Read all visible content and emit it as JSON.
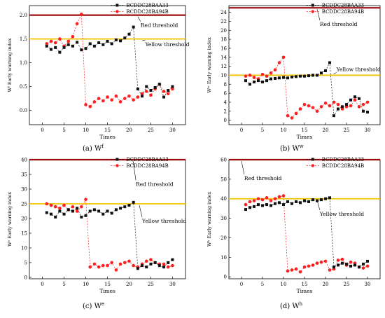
{
  "chart_data": [
    {
      "type": "line",
      "panel": "(a)",
      "caption_label": "(a)  W",
      "caption_sup": "f",
      "xlabel": "Times",
      "ylabel": "Wᶠ Early warning index",
      "xlim": [
        -3,
        33
      ],
      "ylim": [
        -0.3,
        2.2
      ],
      "xticks": [
        0,
        5,
        10,
        15,
        20,
        25,
        30
      ],
      "yticks": [
        0.0,
        0.5,
        1.0,
        1.5,
        2.0
      ],
      "ytick_labels": [
        "0.0",
        "0.5",
        "1.0",
        "1.5",
        "2.0"
      ],
      "thresholds": [
        {
          "label": "Red threshold",
          "value": 2.0,
          "color": "#9b0d10"
        },
        {
          "label": "Yellow threshold",
          "value": 1.5,
          "color": "#f2c300"
        }
      ],
      "series": [
        {
          "name": "BCDDC28BAA33",
          "marker": "square",
          "color": "#111111",
          "x": [
            1,
            2,
            3,
            4,
            5,
            6,
            7,
            8,
            9,
            10,
            11,
            12,
            13,
            14,
            15,
            16,
            17,
            18,
            19,
            20,
            21,
            22,
            23,
            24,
            25,
            26,
            27,
            28,
            29,
            30
          ],
          "y": [
            1.35,
            1.28,
            1.32,
            1.22,
            1.32,
            1.38,
            1.35,
            1.43,
            1.27,
            1.3,
            1.4,
            1.35,
            1.42,
            1.38,
            1.45,
            1.4,
            1.48,
            1.46,
            1.52,
            1.6,
            1.75,
            0.45,
            0.3,
            0.5,
            0.42,
            0.48,
            0.55,
            0.28,
            0.42,
            0.5
          ]
        },
        {
          "name": "BCDDC28BA94B",
          "marker": "circle",
          "color": "#ff1f1f",
          "x": [
            1,
            2,
            3,
            4,
            5,
            6,
            7,
            8,
            9,
            10,
            11,
            12,
            13,
            14,
            15,
            16,
            17,
            18,
            19,
            20,
            21,
            22,
            23,
            24,
            25,
            26,
            27,
            28,
            29,
            30
          ],
          "y": [
            1.4,
            1.45,
            1.42,
            1.5,
            1.35,
            1.45,
            1.55,
            1.82,
            2.02,
            0.12,
            0.08,
            0.18,
            0.25,
            0.2,
            0.28,
            0.22,
            0.3,
            0.18,
            0.25,
            0.3,
            0.22,
            0.28,
            0.35,
            0.4,
            0.32,
            0.45,
            0.55,
            0.4,
            0.35,
            0.45
          ]
        }
      ]
    },
    {
      "type": "line",
      "panel": "(b)",
      "caption_label": "(b)  W",
      "caption_sup": "w",
      "xlabel": "Times",
      "ylabel": "Wʷ Early warning index",
      "xlim": [
        -3,
        33
      ],
      "ylim": [
        -1,
        25.5
      ],
      "xticks": [
        0,
        5,
        10,
        15,
        20,
        25,
        30
      ],
      "yticks": [
        0,
        2,
        4,
        6,
        8,
        10,
        12,
        14,
        16,
        18,
        20,
        22,
        24
      ],
      "ytick_labels": [
        "0",
        "2",
        "4",
        "6",
        "8",
        "10",
        "12",
        "14",
        "16",
        "18",
        "20",
        "22",
        "24"
      ],
      "thresholds": [
        {
          "label": "Red threshold",
          "value": 25,
          "color": "#9b0d10"
        },
        {
          "label": "Yellow threshold",
          "value": 10,
          "color": "#f2c300"
        }
      ],
      "series": [
        {
          "name": "BCDDC28BAA33",
          "marker": "square",
          "color": "#111111",
          "x": [
            1,
            2,
            3,
            4,
            5,
            6,
            7,
            8,
            9,
            10,
            11,
            12,
            13,
            14,
            15,
            16,
            17,
            18,
            19,
            20,
            21,
            22,
            23,
            24,
            25,
            26,
            27,
            28,
            29,
            30
          ],
          "y": [
            8.8,
            8.0,
            8.5,
            8.8,
            8.5,
            8.8,
            9.2,
            9.3,
            9.4,
            9.5,
            9.4,
            9.6,
            9.7,
            9.8,
            9.8,
            9.9,
            10.0,
            10.0,
            10.5,
            11.0,
            12.8,
            1.0,
            2.5,
            3.0,
            3.5,
            4.5,
            5.2,
            4.8,
            2.0,
            1.8
          ]
        },
        {
          "name": "BCDDC28BA94B",
          "marker": "circle",
          "color": "#ff1f1f",
          "x": [
            1,
            2,
            3,
            4,
            5,
            6,
            7,
            8,
            9,
            10,
            11,
            12,
            13,
            14,
            15,
            16,
            17,
            18,
            19,
            20,
            21,
            22,
            23,
            24,
            25,
            26,
            27,
            28,
            29,
            30
          ],
          "y": [
            9.8,
            10.0,
            9.5,
            9.2,
            10.2,
            9.8,
            10.5,
            11.2,
            12.8,
            14.0,
            1.0,
            0.5,
            1.5,
            2.5,
            3.5,
            3.2,
            2.8,
            2.0,
            3.0,
            3.8,
            3.2,
            4.0,
            3.5,
            2.5,
            3.0,
            3.2,
            4.5,
            3.0,
            3.5,
            4.0
          ]
        }
      ]
    },
    {
      "type": "line",
      "panel": "(c)",
      "caption_label": "(c)  W",
      "caption_sup": "e",
      "xlabel": "Times",
      "ylabel": "Wᵉ Early warning index",
      "xlim": [
        -3,
        33
      ],
      "ylim": [
        -0.5,
        40
      ],
      "xticks": [
        0,
        5,
        10,
        15,
        20,
        25,
        30
      ],
      "yticks": [
        0,
        5,
        10,
        15,
        20,
        25,
        30,
        35,
        40
      ],
      "ytick_labels": [
        "0",
        "5",
        "10",
        "15",
        "20",
        "25",
        "30",
        "35",
        "40"
      ],
      "thresholds": [
        {
          "label": "Red threshold",
          "value": 40,
          "color": "#9b0d10"
        },
        {
          "label": "Yellow threshold",
          "value": 25,
          "color": "#f2c300"
        }
      ],
      "series": [
        {
          "name": "BCDDC28BAA33",
          "marker": "square",
          "color": "#111111",
          "x": [
            1,
            2,
            3,
            4,
            5,
            6,
            7,
            8,
            9,
            10,
            11,
            12,
            13,
            14,
            15,
            16,
            17,
            18,
            19,
            20,
            21,
            22,
            23,
            24,
            25,
            26,
            27,
            28,
            29,
            30
          ],
          "y": [
            22.0,
            21.5,
            20.5,
            22.5,
            21.5,
            23.0,
            22.5,
            23.5,
            20.5,
            21.0,
            22.5,
            23.0,
            22.5,
            21.5,
            22.5,
            21.8,
            23.0,
            23.5,
            24.0,
            24.5,
            25.5,
            3.0,
            4.0,
            3.5,
            4.5,
            5.0,
            4.0,
            3.5,
            5.0,
            6.0
          ]
        },
        {
          "name": "BCDDC28BA94B",
          "marker": "circle",
          "color": "#ff1f1f",
          "x": [
            1,
            2,
            3,
            4,
            5,
            6,
            7,
            8,
            9,
            10,
            11,
            12,
            13,
            14,
            15,
            16,
            17,
            18,
            19,
            20,
            21,
            22,
            23,
            24,
            25,
            26,
            27,
            28,
            29,
            30
          ],
          "y": [
            25.0,
            24.5,
            24.0,
            23.5,
            24.5,
            23.0,
            24.0,
            22.5,
            24.0,
            26.5,
            3.5,
            4.5,
            3.5,
            4.0,
            4.0,
            5.0,
            2.5,
            4.5,
            5.0,
            5.5,
            4.0,
            3.5,
            4.5,
            5.5,
            6.0,
            5.0,
            4.5,
            4.5,
            3.5,
            4.0
          ]
        }
      ]
    },
    {
      "type": "line",
      "panel": "(d)",
      "caption_label": "(d)  W",
      "caption_sup": "h",
      "xlabel": "Times",
      "ylabel": "Wʰ Early warning index",
      "xlim": [
        -3,
        33
      ],
      "ylim": [
        -1,
        60
      ],
      "xticks": [
        0,
        5,
        10,
        15,
        20,
        25,
        30
      ],
      "yticks": [
        0,
        10,
        20,
        30,
        40,
        50,
        60
      ],
      "ytick_labels": [
        "0",
        "10",
        "20",
        "30",
        "40",
        "50",
        "60"
      ],
      "thresholds": [
        {
          "label": "Red threshold",
          "value": 60,
          "color": "#9b0d10"
        },
        {
          "label": "Yellow threshold",
          "value": 40,
          "color": "#f2c300"
        }
      ],
      "series": [
        {
          "name": "BCDDC28BAA33",
          "marker": "square",
          "color": "#111111",
          "x": [
            1,
            2,
            3,
            4,
            5,
            6,
            7,
            8,
            9,
            10,
            11,
            12,
            13,
            14,
            15,
            16,
            17,
            18,
            19,
            20,
            21,
            22,
            23,
            24,
            25,
            26,
            27,
            28,
            29,
            30
          ],
          "y": [
            34.5,
            35.5,
            36.0,
            37.0,
            36.5,
            37.0,
            36.5,
            37.5,
            38.0,
            37.0,
            38.5,
            37.5,
            38.5,
            38.0,
            39.0,
            38.5,
            39.5,
            39.0,
            39.5,
            40.0,
            40.5,
            5.0,
            6.0,
            7.0,
            6.5,
            5.5,
            6.0,
            5.0,
            6.5,
            8.0
          ]
        },
        {
          "name": "BCDDC28BA94B",
          "marker": "circle",
          "color": "#ff1f1f",
          "x": [
            1,
            2,
            3,
            4,
            5,
            6,
            7,
            8,
            9,
            10,
            11,
            12,
            13,
            14,
            15,
            16,
            17,
            18,
            19,
            20,
            21,
            22,
            23,
            24,
            25,
            26,
            27,
            28,
            29,
            30
          ],
          "y": [
            37.0,
            38.5,
            39.0,
            40.0,
            39.5,
            40.5,
            39.0,
            40.0,
            41.0,
            41.5,
            3.0,
            3.5,
            4.0,
            2.5,
            5.0,
            5.5,
            6.0,
            7.0,
            7.5,
            8.0,
            3.5,
            4.0,
            8.5,
            9.0,
            6.0,
            7.5,
            7.0,
            5.0,
            4.5,
            5.5
          ]
        }
      ]
    }
  ]
}
